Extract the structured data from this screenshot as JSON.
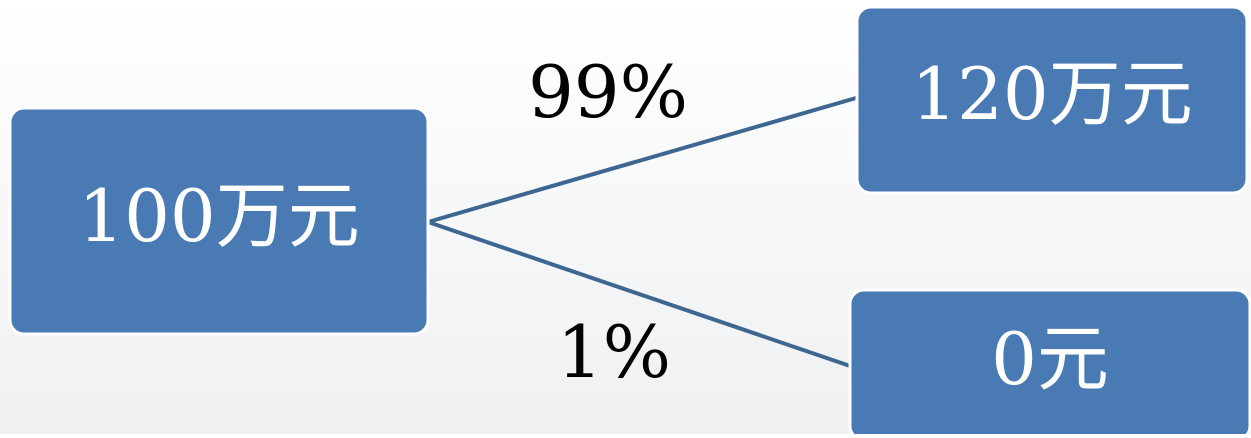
{
  "nodes": [
    {
      "label": "100万元"
    },
    {
      "label": "120万元"
    },
    {
      "label": "0元"
    }
  ],
  "edges": [
    {
      "label": "99%"
    },
    {
      "label": "1%"
    }
  ]
}
